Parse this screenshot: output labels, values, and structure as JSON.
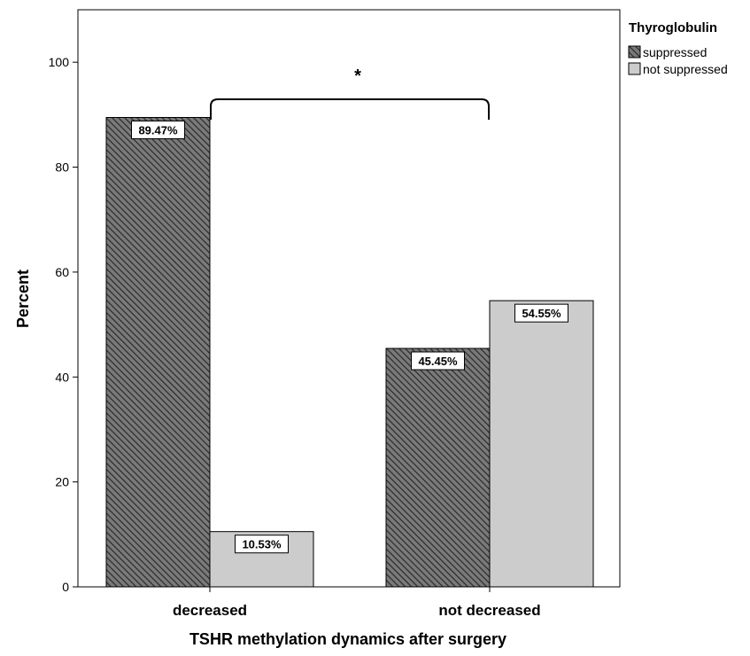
{
  "chart_data": {
    "type": "bar",
    "title": "",
    "xlabel": "TSHR methylation dynamics after surgery",
    "ylabel": "Percent",
    "categories": [
      "decreased",
      "not decreased"
    ],
    "series": [
      {
        "name": "suppressed",
        "values": [
          89.47,
          45.45
        ],
        "labels": [
          "89.47%",
          "45.45%"
        ],
        "color": "#5a5a5a",
        "pattern": "diagonal-hatch"
      },
      {
        "name": "not suppressed",
        "values": [
          10.53,
          54.55
        ],
        "labels": [
          "10.53%",
          "54.55%"
        ],
        "color": "#cccccc",
        "pattern": "solid"
      }
    ],
    "yticks": [
      0,
      20,
      40,
      60,
      80,
      100
    ],
    "ylim": [
      0,
      110
    ],
    "grid": false,
    "legend": {
      "title": "Thyroglobulin",
      "position": "top-right-outside"
    },
    "annotation": {
      "text": "*",
      "type": "significance-bracket",
      "between": [
        "decreased",
        "not decreased"
      ]
    }
  }
}
